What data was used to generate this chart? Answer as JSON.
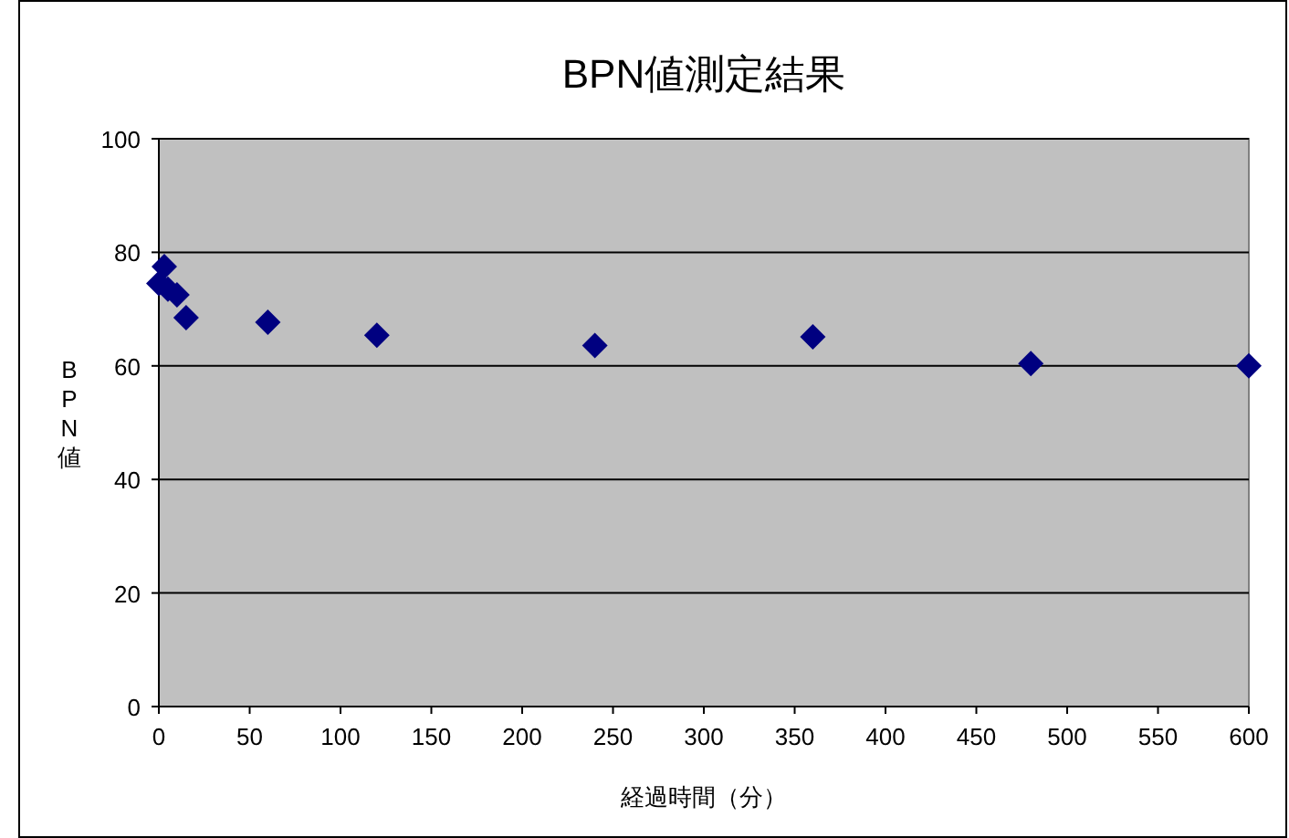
{
  "chart_data": {
    "type": "scatter",
    "title": "BPN値測定結果",
    "xlabel": "経過時間（分）",
    "ylabel": "BPN値",
    "x": [
      0,
      3,
      5,
      10,
      15,
      60,
      120,
      240,
      360,
      480,
      600
    ],
    "series": [
      {
        "color": "#000080",
        "values": [
          74.5,
          77.5,
          73.5,
          72.5,
          68.5,
          67.7,
          65.4,
          63.6,
          65.1,
          60.4,
          60
        ]
      }
    ],
    "xlim": [
      0,
      600
    ],
    "xticks": [
      0,
      50,
      100,
      150,
      200,
      250,
      300,
      350,
      400,
      450,
      500,
      550,
      600
    ],
    "ylim": [
      0,
      100
    ],
    "yticks": [
      0,
      20,
      40,
      60,
      80,
      100
    ],
    "grid": "y",
    "marker": "diamond"
  }
}
